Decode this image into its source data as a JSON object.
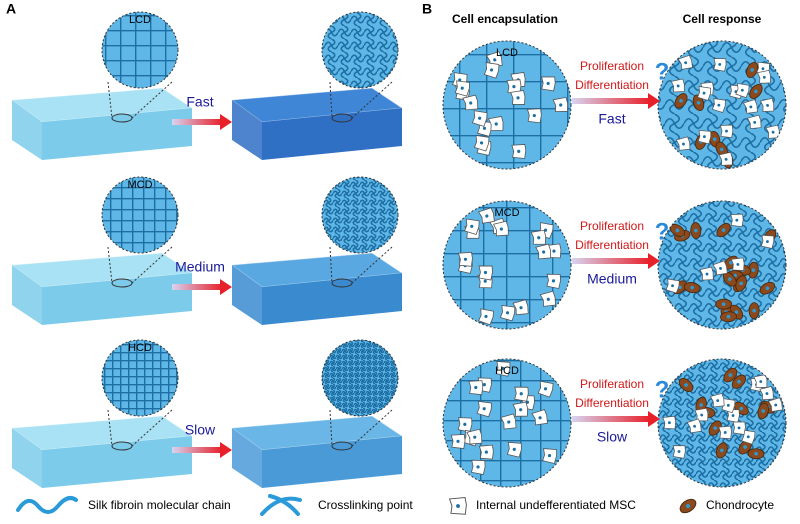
{
  "panel_a": {
    "label": "A",
    "rows": [
      {
        "density": "LCD",
        "speed": "Fast"
      },
      {
        "density": "MCD",
        "speed": "Medium"
      },
      {
        "density": "HCD",
        "speed": "Slow"
      }
    ]
  },
  "panel_b": {
    "label": "B",
    "headers": [
      "Cell encapsulation",
      "Cell response"
    ],
    "rows": [
      {
        "density": "LCD",
        "process": [
          "Proliferation",
          "Differentiation"
        ],
        "speed": "Fast"
      },
      {
        "density": "MCD",
        "process": [
          "Proliferation",
          "Differentiation"
        ],
        "speed": "Medium"
      },
      {
        "density": "HCD",
        "process": [
          "Proliferation",
          "Differentiation"
        ],
        "speed": "Slow"
      }
    ]
  },
  "legend": [
    "Silk fibroin molecular chain",
    "Crosslinking point",
    "Internal undefferentiated MSC",
    "Chondrocyte"
  ]
}
